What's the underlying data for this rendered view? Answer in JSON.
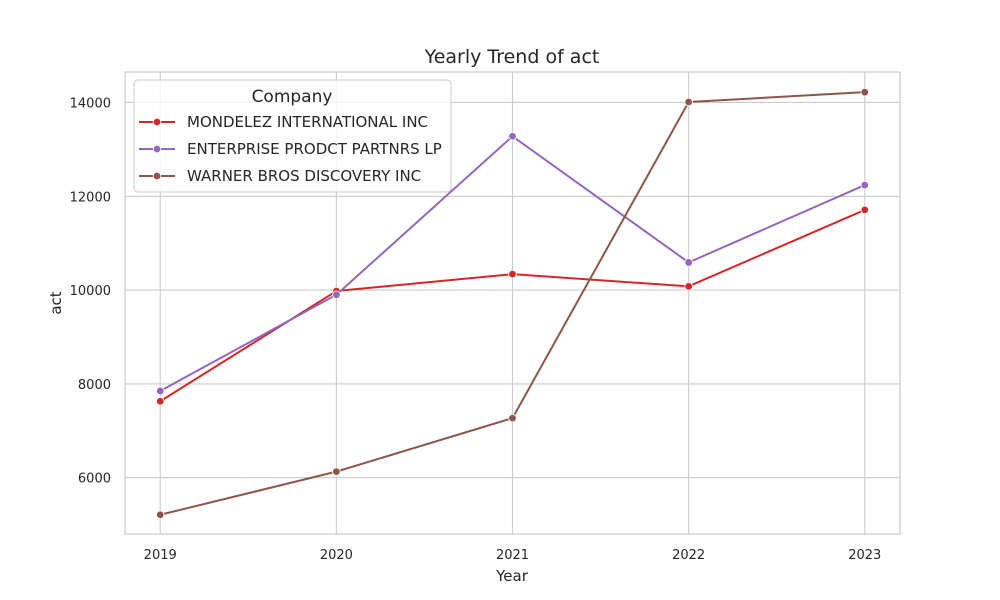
{
  "chart_data": {
    "type": "line",
    "title": "Yearly Trend of act",
    "xlabel": "Year",
    "ylabel": "act",
    "x": [
      2019,
      2020,
      2021,
      2022,
      2023
    ],
    "x_tick_labels": [
      "2019",
      "2020",
      "2021",
      "2022",
      "2023"
    ],
    "ylim": [
      4800,
      14650
    ],
    "y_ticks": [
      6000,
      8000,
      10000,
      12000,
      14000
    ],
    "y_tick_labels": [
      "6000",
      "8000",
      "10000",
      "12000",
      "14000"
    ],
    "grid": true,
    "legend": {
      "title": "Company",
      "placement": "top-left"
    },
    "series": [
      {
        "name": "MONDELEZ INTERNATIONAL INC",
        "color": "#d62728",
        "values": [
          7630,
          9980,
          10340,
          10080,
          11710
        ]
      },
      {
        "name": "ENTERPRISE PRODCT PARTNRS LP",
        "color": "#9467bd",
        "values": [
          7850,
          9900,
          13280,
          10590,
          12240
        ]
      },
      {
        "name": "WARNER BROS DISCOVERY INC",
        "color": "#8c564b",
        "values": [
          5210,
          6130,
          7270,
          14010,
          14220
        ]
      }
    ]
  }
}
